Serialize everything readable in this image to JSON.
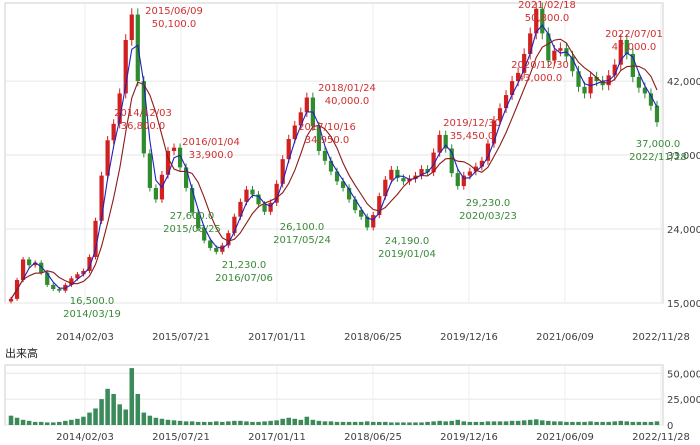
{
  "chart_data": [
    {
      "type": "candlestick",
      "ylim": [
        15000,
        51500
      ],
      "y_ticks": [
        {
          "value": 15000,
          "label": "15,000"
        },
        {
          "value": 24000,
          "label": "24,000"
        },
        {
          "value": 33000,
          "label": "33,000"
        },
        {
          "value": 42000,
          "label": "42,000"
        }
      ],
      "x_ticks": [
        "2014/02/03",
        "2015/07/21",
        "2017/01/11",
        "2018/06/25",
        "2019/12/16",
        "2021/06/09",
        "2022/11/28"
      ],
      "x_tick_pos": [
        0.0956,
        0.2591,
        0.4225,
        0.586,
        0.7494,
        0.9129,
        1.0764
      ],
      "series": [
        {
          "color": "#c02020",
          "values": [
            15500,
            17800,
            20300,
            19600,
            19900,
            18700,
            17200,
            16700,
            16500,
            17200,
            18000,
            18500,
            18900,
            20600,
            25000,
            30500,
            34800,
            36800,
            40500,
            47000,
            50100,
            42000,
            33200,
            29000,
            27600,
            30600,
            33500,
            33900,
            31500,
            29000,
            26000,
            24100,
            22600,
            21700,
            21230,
            22000,
            23500,
            25500,
            27300,
            28800,
            28200,
            27000,
            26100,
            27200,
            29500,
            32500,
            34950,
            36600,
            38200,
            40000,
            36500,
            33500,
            32300,
            31000,
            29800,
            29000,
            27600,
            26300,
            25500,
            24190,
            25700,
            28000,
            30000,
            31200,
            30200,
            29800,
            30100,
            30500,
            31300,
            30900,
            33300,
            35450,
            33800,
            30800,
            29230,
            30500,
            31000,
            31600,
            32300,
            34400,
            37200,
            38700,
            40300,
            42000,
            43000,
            45300,
            47800,
            50800,
            47800,
            44500,
            45700,
            46000,
            45000,
            43200,
            41300,
            40500,
            42500,
            42000,
            41500,
            42700,
            44000,
            47000,
            45300,
            42500,
            41200,
            40500,
            39000,
            37000
          ]
        }
      ],
      "annotations": [
        {
          "text": "2015/06/09",
          "kind": "high"
        },
        {
          "text": "50,100.0",
          "kind": "high"
        },
        {
          "text": "2014/12/03",
          "kind": "high"
        },
        {
          "text": "36,800.0",
          "kind": "high"
        },
        {
          "text": "2016/01/04",
          "kind": "high"
        },
        {
          "text": "33,900.0",
          "kind": "high"
        },
        {
          "text": "2018/01/24",
          "kind": "high"
        },
        {
          "text": "40,000.0",
          "kind": "high"
        },
        {
          "text": "2017/10/16",
          "kind": "high"
        },
        {
          "text": "34,950.0",
          "kind": "high"
        },
        {
          "text": "2019/12/30",
          "kind": "high"
        },
        {
          "text": "35,450.0",
          "kind": "high"
        },
        {
          "text": "2021/02/18",
          "kind": "high"
        },
        {
          "text": "50,800.0",
          "kind": "high"
        },
        {
          "text": "2020/12/30",
          "kind": "high"
        },
        {
          "text": "43,000.0",
          "kind": "high"
        },
        {
          "text": "2022/07/01",
          "kind": "high"
        },
        {
          "text": "47,000.0",
          "kind": "high"
        },
        {
          "text": "16,500.0",
          "kind": "low"
        },
        {
          "text": "2014/03/19",
          "kind": "low"
        },
        {
          "text": "27,600.0",
          "kind": "low"
        },
        {
          "text": "2015/08/25",
          "kind": "low"
        },
        {
          "text": "21,230.0",
          "kind": "low"
        },
        {
          "text": "2016/07/06",
          "kind": "low"
        },
        {
          "text": "26,100.0",
          "kind": "low"
        },
        {
          "text": "2017/05/24",
          "kind": "low"
        },
        {
          "text": "24,190.0",
          "kind": "low"
        },
        {
          "text": "2019/01/04",
          "kind": "low"
        },
        {
          "text": "29,230.0",
          "kind": "low"
        },
        {
          "text": "2020/03/23",
          "kind": "low"
        },
        {
          "text": "37,000.0",
          "kind": "low"
        },
        {
          "text": "2022/11/28",
          "kind": "low"
        }
      ]
    },
    {
      "type": "bar",
      "label": "出来高",
      "ylim": [
        0,
        58000
      ],
      "y_ticks": [
        {
          "value": 0,
          "label": "0"
        },
        {
          "value": 25000,
          "label": "25,000"
        },
        {
          "value": 50000,
          "label": "50,000"
        }
      ],
      "x_ticks": [
        "2014/02/03",
        "2015/07/21",
        "2017/01/11",
        "2018/06/25",
        "2019/12/16",
        "2021/06/09",
        "2022/11/28"
      ],
      "x_tick_pos": [
        0.0956,
        0.2591,
        0.4225,
        0.586,
        0.7494,
        0.9129,
        1.0764
      ],
      "color": "#3a8a5a",
      "values": [
        9000,
        7000,
        5000,
        4000,
        3000,
        3000,
        2500,
        2500,
        3000,
        4000,
        5000,
        6000,
        8000,
        12000,
        16000,
        25000,
        35000,
        30000,
        20000,
        15000,
        55000,
        30000,
        12000,
        9000,
        7000,
        6000,
        5000,
        4500,
        4000,
        3500,
        3500,
        3000,
        3000,
        3000,
        3500,
        3000,
        3500,
        4000,
        4000,
        3500,
        3000,
        3000,
        3500,
        4000,
        4500,
        6000,
        7000,
        6000,
        5000,
        8000,
        5000,
        4000,
        3500,
        3500,
        3000,
        3000,
        3000,
        3000,
        3000,
        3500,
        3000,
        3000,
        3000,
        2500,
        2500,
        2500,
        2500,
        2500,
        2500,
        3000,
        3500,
        4000,
        3500,
        4000,
        5000,
        3500,
        3000,
        3000,
        3000,
        3500,
        3500,
        3500,
        3500,
        4000,
        4000,
        4500,
        5000,
        5500,
        4500,
        4000,
        3500,
        3500,
        3000,
        3000,
        3000,
        3000,
        3500,
        3000,
        3000,
        3000,
        3500,
        4000,
        3500,
        3000,
        3000,
        3000,
        3000,
        3500
      ]
    }
  ]
}
